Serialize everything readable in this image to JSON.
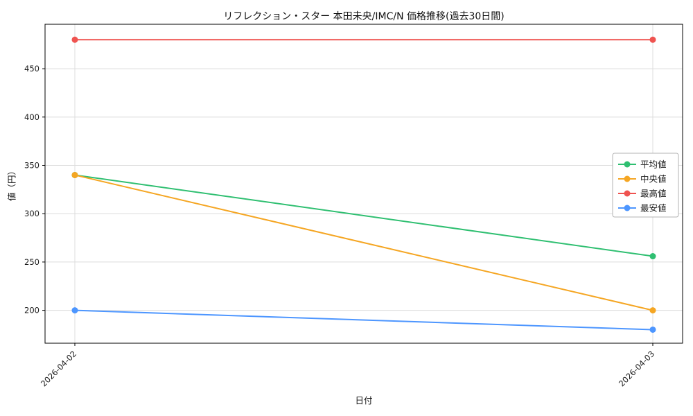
{
  "chart_data": {
    "type": "line",
    "title": "リフレクション・スター 本田未央/IMC/N 価格推移(過去30日間)",
    "xlabel": "日付",
    "ylabel": "値（円）",
    "categories": [
      "2026-04-02",
      "2026-04-03"
    ],
    "series": [
      {
        "name": "平均値",
        "key": "average",
        "color": "#2fbf71",
        "values": [
          340,
          256
        ]
      },
      {
        "name": "中央値",
        "key": "median",
        "color": "#f5a623",
        "values": [
          340,
          200
        ]
      },
      {
        "name": "最高値",
        "key": "max",
        "color": "#ef5350",
        "values": [
          480,
          480
        ]
      },
      {
        "name": "最安値",
        "key": "min",
        "color": "#4d96ff",
        "values": [
          200,
          180
        ]
      }
    ],
    "ylim": [
      166,
      496
    ],
    "yticks": [
      200,
      250,
      300,
      350,
      400,
      450
    ],
    "grid": true,
    "legend": {
      "position": "right",
      "entries": [
        "平均値",
        "中央値",
        "最高値",
        "最安値"
      ]
    }
  }
}
